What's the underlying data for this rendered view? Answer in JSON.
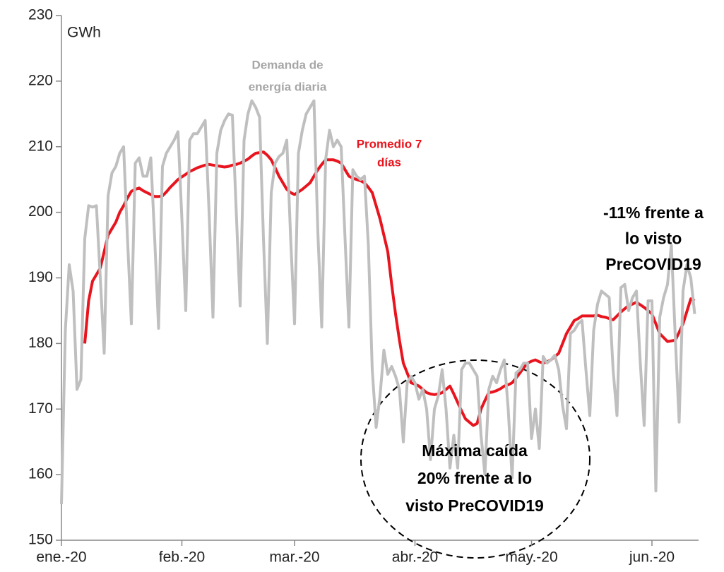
{
  "chart_data": {
    "type": "line",
    "unit_label": "GWh",
    "x": [
      0,
      1,
      2,
      3,
      4,
      5,
      6,
      7,
      8,
      9,
      10,
      11,
      12,
      13,
      14,
      15,
      16,
      17,
      18,
      19,
      20,
      21,
      22,
      23,
      24,
      25,
      26,
      27,
      28,
      29,
      30,
      31,
      32,
      33,
      34,
      35,
      36,
      37,
      38,
      39,
      40,
      41,
      42,
      43,
      44,
      45,
      46,
      47,
      48,
      49,
      50,
      51,
      52,
      53,
      54,
      55,
      56,
      57,
      58,
      59,
      60,
      61,
      62,
      63,
      64,
      65,
      66,
      67,
      68,
      69,
      70,
      71,
      72,
      73,
      74,
      75,
      76,
      77,
      78,
      79,
      80,
      81,
      82,
      83,
      84,
      85,
      86,
      87,
      88,
      89,
      90,
      91,
      92,
      93,
      94,
      95,
      96,
      97,
      98,
      99,
      100,
      101,
      102,
      103,
      104,
      105,
      106,
      107,
      108,
      109,
      110,
      111,
      112,
      113,
      114,
      115,
      116,
      117,
      118,
      119,
      120,
      121,
      122,
      123,
      124,
      125,
      126,
      127,
      128,
      129,
      130,
      131,
      132,
      133,
      134,
      135,
      136,
      137,
      138,
      139,
      140,
      141,
      142,
      143,
      144,
      145,
      146,
      147,
      148,
      149,
      150,
      151,
      152,
      153,
      154,
      155,
      156,
      157,
      158,
      159,
      160,
      161,
      162,
      163
    ],
    "series": [
      {
        "label": [
          "Promedio 7",
          "días"
        ],
        "color": "#e8141e",
        "values": [
          null,
          null,
          null,
          null,
          null,
          null,
          180,
          186.5,
          189.5,
          190.5,
          191.5,
          194,
          196.5,
          197.5,
          198.5,
          200,
          201,
          202.2,
          203.2,
          203.5,
          203.7,
          203.3,
          203,
          202.7,
          202.4,
          202.4,
          202.5,
          203.1,
          203.8,
          204.4,
          205,
          205.4,
          205.8,
          206.2,
          206.5,
          206.8,
          207,
          207.2,
          207.3,
          207.2,
          207.1,
          207,
          206.9,
          207,
          207.2,
          207.3,
          207.5,
          207.8,
          208.1,
          208.6,
          209,
          209.1,
          209.2,
          208.7,
          208,
          206.8,
          205.5,
          204.5,
          203.5,
          203,
          202.7,
          203.1,
          203.5,
          204,
          204.5,
          205.5,
          206.5,
          207.3,
          208,
          208,
          208,
          207.8,
          207.5,
          206.5,
          205.5,
          205.2,
          205,
          204.8,
          204.5,
          203.8,
          203,
          201,
          199,
          196.5,
          194,
          189,
          184.5,
          180.5,
          177,
          175.5,
          174,
          173.8,
          173.5,
          173,
          172.5,
          172.3,
          172.2,
          172.3,
          172.5,
          173,
          173.5,
          172.3,
          171,
          169.7,
          168.5,
          168,
          167.5,
          167.8,
          170,
          171.3,
          172.5,
          172.6,
          172.8,
          173.1,
          173.5,
          173.7,
          174,
          174.7,
          175.5,
          176.3,
          177,
          177.3,
          177.5,
          177.2,
          177,
          177.2,
          177.5,
          178,
          178.5,
          180,
          181.5,
          182.5,
          183.5,
          183.8,
          184.2,
          184.2,
          184.2,
          184.2,
          184.3,
          184.1,
          184,
          183.8,
          183.6,
          184.2,
          184.8,
          185.3,
          185.8,
          186,
          186.3,
          185.9,
          185.5,
          185,
          184.5,
          183,
          181.5,
          180.9,
          180.3,
          180.4,
          180.5,
          181.7,
          183,
          184.9,
          186.8,
          186.5
        ]
      },
      {
        "label": [
          "Demanda de",
          "energía diaria"
        ],
        "color": "#bfbfbf",
        "values": [
          155.5,
          182,
          192,
          188,
          173,
          174.5,
          196,
          201,
          200.8,
          201,
          190,
          178.5,
          202.5,
          206,
          207,
          209,
          210,
          196,
          183,
          207.5,
          208.3,
          205.5,
          205.5,
          208.3,
          196,
          182.3,
          207,
          209,
          210,
          211,
          212.3,
          199,
          185,
          211,
          212,
          212,
          213,
          214,
          200,
          184,
          209,
          212.5,
          214,
          215,
          214.8,
          200,
          185.7,
          211,
          215,
          217,
          216,
          214.5,
          196,
          180,
          203,
          207.5,
          208.5,
          209,
          211,
          196,
          183,
          209,
          212.5,
          215,
          216,
          217,
          197,
          182.5,
          208,
          212.5,
          210,
          211,
          210,
          196,
          182.5,
          206.5,
          205.5,
          205,
          205.5,
          195,
          176,
          167.2,
          172,
          179,
          175.3,
          176.5,
          175,
          173,
          165,
          174,
          175,
          174,
          171.5,
          173,
          170,
          162.3,
          170,
          172,
          176,
          170,
          161,
          166,
          161,
          176,
          177,
          177,
          176,
          175,
          166,
          160,
          173,
          175,
          174,
          176,
          177.5,
          170,
          159.5,
          175.5,
          176,
          177,
          177,
          165.5,
          170,
          164,
          178,
          177,
          177.5,
          178.2,
          176,
          170.5,
          167,
          181.5,
          182,
          183,
          183.5,
          176,
          169,
          182,
          186,
          188,
          187.5,
          187,
          176,
          169,
          188.5,
          189,
          185,
          187,
          188,
          177,
          167.5,
          186.5,
          186.5,
          157.5,
          184,
          187,
          189,
          195,
          181,
          168,
          188,
          192,
          190,
          184.5
        ]
      }
    ],
    "xlim": [
      0,
      164
    ],
    "xticks": [
      {
        "value": 0,
        "label": "ene.-20"
      },
      {
        "value": 31,
        "label": "feb.-20"
      },
      {
        "value": 60,
        "label": "mar.-20"
      },
      {
        "value": 91,
        "label": "abr.-20"
      },
      {
        "value": 121,
        "label": "may.-20"
      },
      {
        "value": 152,
        "label": "jun.-20"
      }
    ],
    "ylim": [
      150,
      230
    ],
    "yticks": [
      150,
      160,
      170,
      180,
      190,
      200,
      210,
      220,
      230
    ],
    "annotations": [
      {
        "lines": [
          "-11% frente a",
          "lo visto",
          "PreCOVID19"
        ]
      },
      {
        "lines": [
          "Máxima caída",
          "20% frente a lo",
          "visto PreCOVID19"
        ]
      }
    ]
  }
}
